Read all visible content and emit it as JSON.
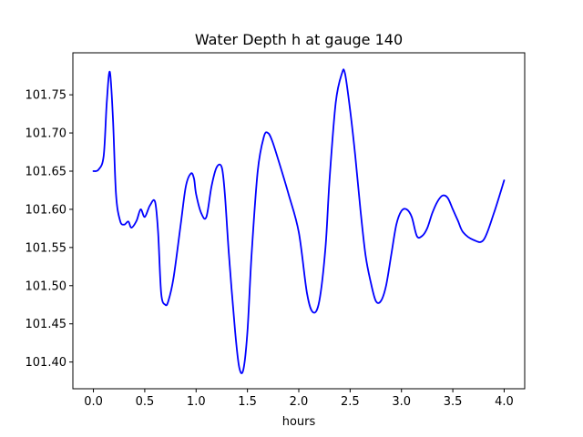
{
  "chart_data": {
    "type": "line",
    "title": "Water Depth h at gauge 140",
    "xlabel": "hours",
    "ylabel": "",
    "xlim": [
      -0.2,
      4.2
    ],
    "ylim": [
      101.365,
      101.805
    ],
    "xticks": [
      0.0,
      0.5,
      1.0,
      1.5,
      2.0,
      2.5,
      3.0,
      3.5,
      4.0
    ],
    "xtick_labels": [
      "0.0",
      "0.5",
      "1.0",
      "1.5",
      "2.0",
      "2.5",
      "3.0",
      "3.5",
      "4.0"
    ],
    "yticks": [
      101.4,
      101.45,
      101.5,
      101.55,
      101.6,
      101.65,
      101.7,
      101.75
    ],
    "ytick_labels": [
      "101.40",
      "101.45",
      "101.50",
      "101.55",
      "101.60",
      "101.65",
      "101.70",
      "101.75"
    ],
    "grid": false,
    "series": [
      {
        "color": "#0000ff",
        "x": [
          0.0,
          0.05,
          0.1,
          0.13,
          0.16,
          0.19,
          0.22,
          0.26,
          0.3,
          0.34,
          0.37,
          0.42,
          0.46,
          0.5,
          0.55,
          0.6,
          0.63,
          0.66,
          0.7,
          0.73,
          0.78,
          0.85,
          0.9,
          0.95,
          0.98,
          1.0,
          1.05,
          1.1,
          1.15,
          1.2,
          1.25,
          1.28,
          1.32,
          1.38,
          1.42,
          1.46,
          1.5,
          1.54,
          1.6,
          1.66,
          1.7,
          1.74,
          1.8,
          1.9,
          2.0,
          2.08,
          2.14,
          2.2,
          2.26,
          2.3,
          2.36,
          2.42,
          2.45,
          2.5,
          2.55,
          2.6,
          2.65,
          2.7,
          2.75,
          2.8,
          2.85,
          2.9,
          2.95,
          3.0,
          3.05,
          3.1,
          3.15,
          3.2,
          3.25,
          3.3,
          3.35,
          3.4,
          3.45,
          3.5,
          3.55,
          3.6,
          3.7,
          3.8,
          3.9,
          4.0
        ],
        "y": [
          101.65,
          101.652,
          101.67,
          101.74,
          101.78,
          101.72,
          101.62,
          101.585,
          101.58,
          101.584,
          101.576,
          101.585,
          101.6,
          101.59,
          101.605,
          101.61,
          101.57,
          101.49,
          101.475,
          101.48,
          101.51,
          101.58,
          101.63,
          101.647,
          101.64,
          101.62,
          101.595,
          101.59,
          101.63,
          101.655,
          101.655,
          101.62,
          101.54,
          101.44,
          101.393,
          101.39,
          101.44,
          101.54,
          101.65,
          101.695,
          101.7,
          101.69,
          101.665,
          101.62,
          101.57,
          101.49,
          101.465,
          101.48,
          101.55,
          101.64,
          101.74,
          101.778,
          101.778,
          101.73,
          101.67,
          101.6,
          101.54,
          101.505,
          101.48,
          101.48,
          101.5,
          101.54,
          101.58,
          101.598,
          101.6,
          101.59,
          101.565,
          101.565,
          101.575,
          101.595,
          101.61,
          101.618,
          101.615,
          101.6,
          101.585,
          101.57,
          101.56,
          101.56,
          101.595,
          101.638
        ]
      }
    ]
  }
}
